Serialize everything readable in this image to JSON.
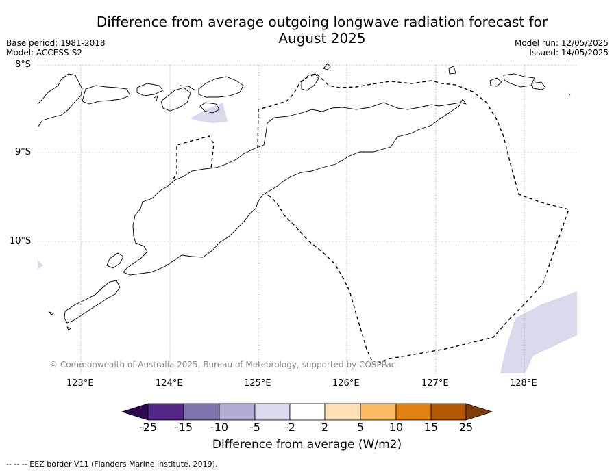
{
  "title_line1": "Difference from average outgoing longwave radiation forecast for",
  "title_line2": "August 2025",
  "base_period": "Base period: 1981-2018",
  "model": "Model: ACCESS-S2",
  "model_run": "Model run: 12/05/2025",
  "issued": "Issued: 14/05/2025",
  "lat_labels": [
    "8°S",
    "9°S",
    "10°S"
  ],
  "lon_labels": [
    "123°E",
    "124°E",
    "125°E",
    "126°E",
    "127°E",
    "128°E"
  ],
  "copyright": "© Commonwealth of Australia 2025, Bureau of Meteorology, supported by COSPPac",
  "colorbar": {
    "ticks": [
      "-25",
      "-15",
      "-10",
      "-5",
      "-2",
      "2",
      "5",
      "10",
      "15",
      "25"
    ],
    "colors": [
      "#2d0a4e",
      "#542788",
      "#8073ac",
      "#b2abd2",
      "#d8daeb",
      "#ffffff",
      "#fee0b6",
      "#fdb863",
      "#e08214",
      "#b35806",
      "#7f3b08"
    ],
    "label": "Difference from average (W/m2)"
  },
  "anomaly_fill_color": "#d8daeb",
  "footer": "--  --  -- EEZ border V11 (Flanders Marine Institute, 2019)."
}
